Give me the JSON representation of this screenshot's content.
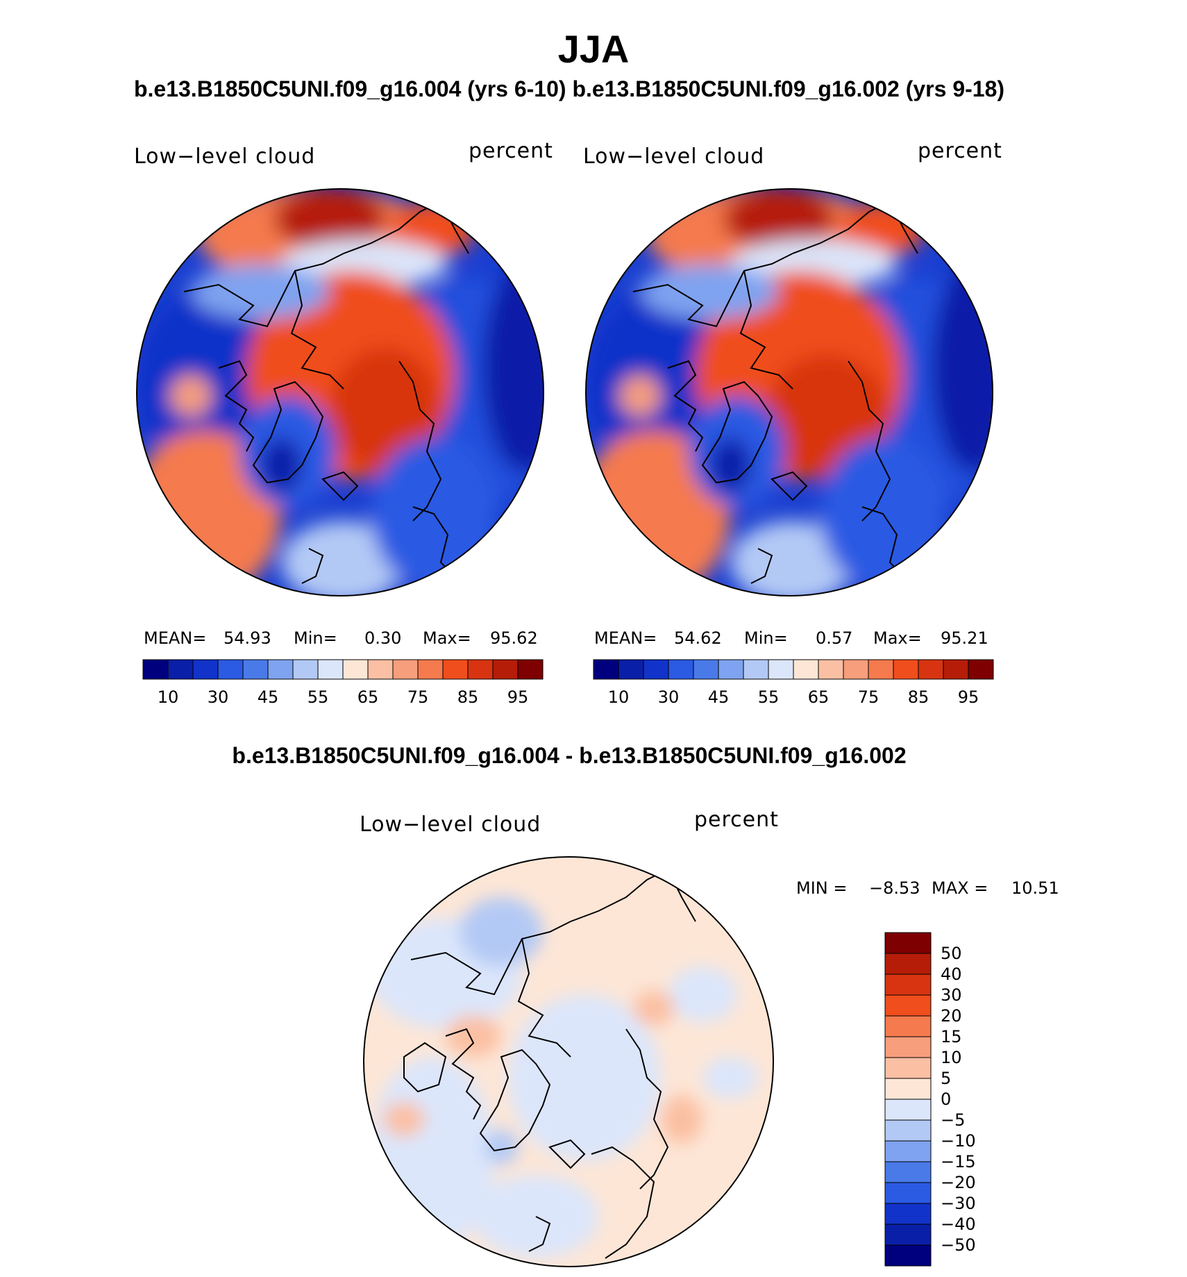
{
  "figure": {
    "title": "JJA",
    "subtitle": "b.e13.B1850C5UNI.f09_g16.004 (yrs 6-10) b.e13.B1850C5UNI.f09_g16.002 (yrs 9-18)",
    "diff_subtitle": "b.e13.B1850C5UNI.f09_g16.004 - b.e13.B1850C5UNI.f09_g16.002"
  },
  "panels": [
    {
      "left_label": "Low−level cloud",
      "right_label": "percent",
      "mean_label": "MEAN=",
      "mean_value": "54.93",
      "min_label": "Min=",
      "min_value": "0.30",
      "max_label": "Max=",
      "max_value": "95.62"
    },
    {
      "left_label": "Low−level cloud",
      "right_label": "percent",
      "mean_label": "MEAN=",
      "mean_value": "54.62",
      "min_label": "Min=",
      "min_value": "0.57",
      "max_label": "Max=",
      "max_value": "95.21"
    }
  ],
  "diff_panel": {
    "left_label": "Low−level cloud",
    "right_label": "percent",
    "min_label": "MIN =",
    "min_value": "−8.53",
    "max_label": "MAX =",
    "max_value": "10.51"
  },
  "colorbar_main": {
    "ticks": [
      "10",
      "30",
      "45",
      "55",
      "65",
      "75",
      "85",
      "95"
    ],
    "colors": [
      "#00007f",
      "#0a1fa8",
      "#1133c9",
      "#2b5ae3",
      "#4a7ae8",
      "#7fa3f0",
      "#b3c9f5",
      "#dbe6fb",
      "#fde6d6",
      "#fbc0a3",
      "#f79e7c",
      "#f57a4d",
      "#f04e1c",
      "#d83411",
      "#b51d08",
      "#7f0000"
    ]
  },
  "colorbar_diff": {
    "ticks": [
      "50",
      "40",
      "30",
      "20",
      "15",
      "10",
      "5",
      "0",
      "−5",
      "−10",
      "−15",
      "−20",
      "−30",
      "−40",
      "−50"
    ],
    "colors": [
      "#7f0000",
      "#b51d08",
      "#d83411",
      "#f04e1c",
      "#f57a4d",
      "#f79e7c",
      "#fbc0a3",
      "#fde6d6",
      "#dbe6fb",
      "#b3c9f5",
      "#7fa3f0",
      "#4a7ae8",
      "#2b5ae3",
      "#1133c9",
      "#0a1fa8",
      "#00007f"
    ]
  }
}
